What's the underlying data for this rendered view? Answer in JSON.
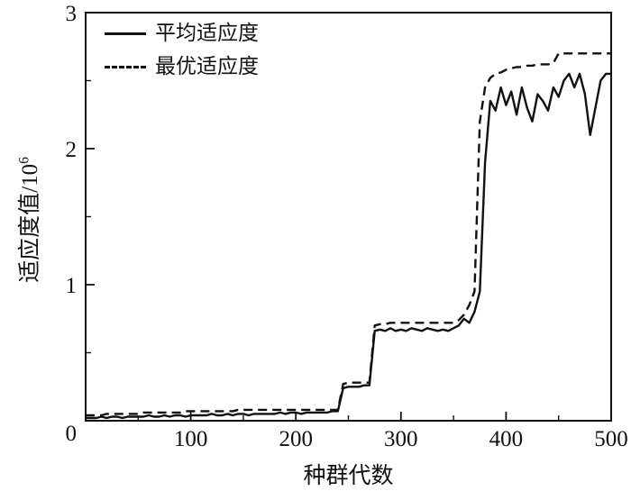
{
  "figure": {
    "background": "#ffffff",
    "axis_color": "#111111"
  },
  "chart_data": {
    "type": "line",
    "title": "",
    "xlabel": "种群代数",
    "ylabel": "适应度值/10⁶",
    "ylabel_parts": {
      "base": "适应度值/10",
      "sup": "6"
    },
    "xlim": [
      0,
      500
    ],
    "ylim": [
      0,
      3
    ],
    "xticks": [
      0,
      100,
      200,
      300,
      400,
      500
    ],
    "yticks": [
      0,
      1,
      2,
      3
    ],
    "x_minor_step": 50,
    "y_minor_step": 0.5,
    "grid": false,
    "legend_position": "top-left",
    "x": [
      0,
      5,
      10,
      15,
      20,
      25,
      30,
      35,
      40,
      45,
      50,
      55,
      60,
      65,
      70,
      75,
      80,
      85,
      90,
      95,
      100,
      105,
      110,
      115,
      120,
      125,
      130,
      135,
      140,
      145,
      150,
      155,
      160,
      165,
      170,
      175,
      180,
      185,
      190,
      195,
      200,
      205,
      210,
      215,
      220,
      225,
      230,
      235,
      240,
      245,
      250,
      255,
      260,
      265,
      270,
      275,
      280,
      285,
      290,
      295,
      300,
      305,
      310,
      315,
      320,
      325,
      330,
      335,
      340,
      345,
      350,
      355,
      360,
      365,
      370,
      375,
      380,
      385,
      390,
      395,
      400,
      405,
      410,
      415,
      420,
      425,
      430,
      435,
      440,
      445,
      450,
      455,
      460,
      465,
      470,
      475,
      480,
      485,
      490,
      495,
      500
    ],
    "series": [
      {
        "name": "平均适应度",
        "style": "solid",
        "color": "#111111",
        "values": [
          0.02,
          0.02,
          0.02,
          0.03,
          0.02,
          0.03,
          0.03,
          0.02,
          0.03,
          0.03,
          0.03,
          0.03,
          0.04,
          0.03,
          0.03,
          0.04,
          0.03,
          0.04,
          0.04,
          0.03,
          0.04,
          0.04,
          0.04,
          0.04,
          0.05,
          0.04,
          0.04,
          0.05,
          0.04,
          0.05,
          0.05,
          0.04,
          0.05,
          0.05,
          0.05,
          0.05,
          0.05,
          0.06,
          0.05,
          0.06,
          0.06,
          0.05,
          0.06,
          0.06,
          0.06,
          0.06,
          0.06,
          0.07,
          0.07,
          0.24,
          0.25,
          0.25,
          0.25,
          0.26,
          0.26,
          0.66,
          0.67,
          0.66,
          0.68,
          0.66,
          0.67,
          0.66,
          0.68,
          0.67,
          0.66,
          0.68,
          0.67,
          0.66,
          0.67,
          0.66,
          0.68,
          0.7,
          0.75,
          0.72,
          0.8,
          0.95,
          1.9,
          2.35,
          2.28,
          2.45,
          2.32,
          2.42,
          2.25,
          2.45,
          2.3,
          2.2,
          2.4,
          2.35,
          2.28,
          2.45,
          2.38,
          2.5,
          2.55,
          2.45,
          2.55,
          2.4,
          2.1,
          2.3,
          2.5,
          2.55,
          2.55
        ]
      },
      {
        "name": "最优适应度",
        "style": "dashed",
        "dash": "10 6",
        "color": "#111111",
        "values": [
          0.04,
          0.04,
          0.04,
          0.04,
          0.05,
          0.05,
          0.05,
          0.05,
          0.05,
          0.05,
          0.05,
          0.06,
          0.06,
          0.06,
          0.06,
          0.06,
          0.06,
          0.06,
          0.06,
          0.07,
          0.07,
          0.07,
          0.07,
          0.07,
          0.07,
          0.07,
          0.07,
          0.07,
          0.07,
          0.08,
          0.08,
          0.08,
          0.08,
          0.08,
          0.08,
          0.08,
          0.08,
          0.08,
          0.08,
          0.08,
          0.08,
          0.08,
          0.08,
          0.08,
          0.08,
          0.08,
          0.08,
          0.08,
          0.08,
          0.27,
          0.28,
          0.28,
          0.28,
          0.28,
          0.28,
          0.7,
          0.71,
          0.71,
          0.72,
          0.72,
          0.72,
          0.72,
          0.72,
          0.72,
          0.72,
          0.72,
          0.72,
          0.72,
          0.72,
          0.72,
          0.72,
          0.74,
          0.78,
          0.85,
          0.95,
          2.2,
          2.45,
          2.52,
          2.55,
          2.56,
          2.58,
          2.59,
          2.6,
          2.6,
          2.61,
          2.61,
          2.62,
          2.62,
          2.62,
          2.63,
          2.7,
          2.7,
          2.7,
          2.7,
          2.7,
          2.7,
          2.7,
          2.7,
          2.7,
          2.7,
          2.7
        ]
      }
    ]
  }
}
